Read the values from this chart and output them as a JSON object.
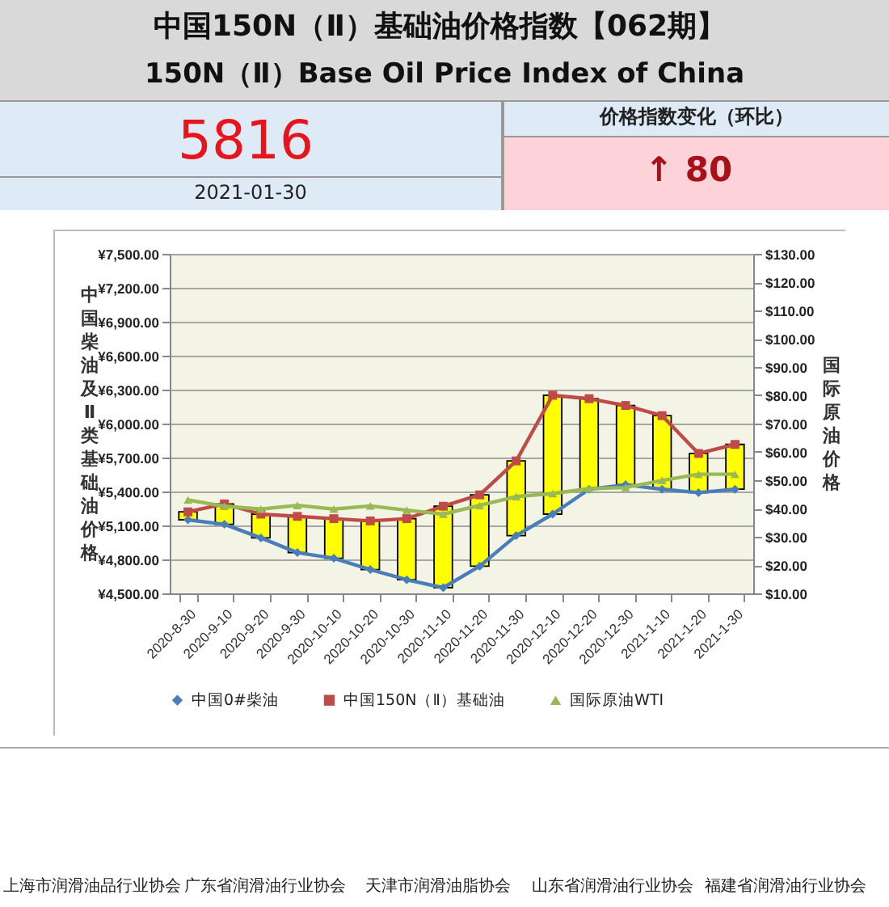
{
  "chart_data": [
    {
      "type": "other",
      "title": "中国150N（Ⅱ）基础油价格指数【062期】",
      "subtitle": "150N（Ⅱ）Base Oil Price Index of China",
      "annotations": [
        "5816",
        "2021-01-30",
        "价格指数变化（环比）",
        "↑ 80"
      ]
    },
    {
      "type": "line",
      "categories": [
        "2020-8-30",
        "2020-9-10",
        "2020-9-20",
        "2020-9-30",
        "2020-10-10",
        "2020-10-20",
        "2020-10-30",
        "2020-11-10",
        "2020-11-20",
        "2020-11-30",
        "2020-12-10",
        "2020-12-20",
        "2020-12-30",
        "2021-1-10",
        "2021-1-20",
        "2021-1-30"
      ],
      "series": [
        {
          "type": "bar",
          "color": "#ffff00",
          "base": [
            5150,
            5110,
            4990,
            4860,
            4810,
            4710,
            4620,
            4550,
            4740,
            5010,
            5200,
            5420,
            5460,
            5420,
            5390,
            5420
          ],
          "values": [
            70,
            180,
            210,
            320,
            350,
            430,
            540,
            720,
            630,
            660,
            1050,
            800,
            700,
            650,
            346,
            396
          ]
        },
        {
          "name": "中国0#柴油",
          "color": "#4a7ebb",
          "marker": "diamond",
          "values": [
            5150,
            5110,
            4990,
            4860,
            4810,
            4710,
            4620,
            4550,
            4740,
            5010,
            5200,
            5420,
            5460,
            5420,
            5390,
            5420
          ]
        },
        {
          "name": "中国150N（Ⅱ）基础油",
          "color": "#be4b48",
          "marker": "square",
          "values": [
            5220,
            5290,
            5200,
            5180,
            5160,
            5140,
            5160,
            5270,
            5370,
            5670,
            6250,
            6220,
            6160,
            6070,
            5736,
            5816
          ]
        },
        {
          "name": "国际原油WTI",
          "color": "#98b954",
          "marker": "triangle",
          "axis": "y2",
          "values": [
            43.0,
            40.8,
            39.8,
            41.1,
            39.8,
            40.9,
            39.4,
            38.0,
            41.1,
            44.2,
            45.3,
            47.0,
            47.4,
            49.9,
            52.1,
            52.1
          ]
        }
      ],
      "ylabel": "中国柴油及Ⅱ类基础油价格",
      "y2label": "国际原油价格",
      "ylim": [
        4500,
        7500
      ],
      "yticks": [
        {
          "value": 4500,
          "label": "¥4,500.00"
        },
        {
          "value": 4800,
          "label": "¥4,800.00"
        },
        {
          "value": 5100,
          "label": "¥5,100.00"
        },
        {
          "value": 5400,
          "label": "¥5,400.00"
        },
        {
          "value": 5700,
          "label": "¥5,700.00"
        },
        {
          "value": 6000,
          "label": "¥6,000.00"
        },
        {
          "value": 6300,
          "label": "¥6,300.00"
        },
        {
          "value": 6600,
          "label": "¥6,600.00"
        },
        {
          "value": 6900,
          "label": "¥6,900.00"
        },
        {
          "value": 7200,
          "label": "¥7,200.00"
        },
        {
          "value": 7500,
          "label": "¥7,500.00"
        }
      ],
      "y2lim": [
        10,
        130
      ],
      "y2ticks": [
        {
          "value": 10,
          "label": "$10.00"
        },
        {
          "value": 20,
          "label": "$20.00"
        },
        {
          "value": 30,
          "label": "$30.00"
        },
        {
          "value": 40,
          "label": "$40.00"
        },
        {
          "value": 50,
          "label": "$50.00"
        },
        {
          "value": 60,
          "label": "$60.00"
        },
        {
          "value": 70,
          "label": "$70.00"
        },
        {
          "value": 80,
          "label": "$80.00"
        },
        {
          "value": 90,
          "label": "$90.00"
        },
        {
          "value": 100,
          "label": "$100.00"
        },
        {
          "value": 110,
          "label": "$110.00"
        },
        {
          "value": 120,
          "label": "$120.00"
        },
        {
          "value": 130,
          "label": "$130.00"
        }
      ],
      "grid": "y",
      "legend": "bottom",
      "annotations": [
        "上海市润滑油品行业协会",
        "广东省润滑油行业协会",
        "天津市润滑油脂协会",
        "山东省润滑油行业协会",
        "福建省润滑油行业协会"
      ]
    }
  ]
}
